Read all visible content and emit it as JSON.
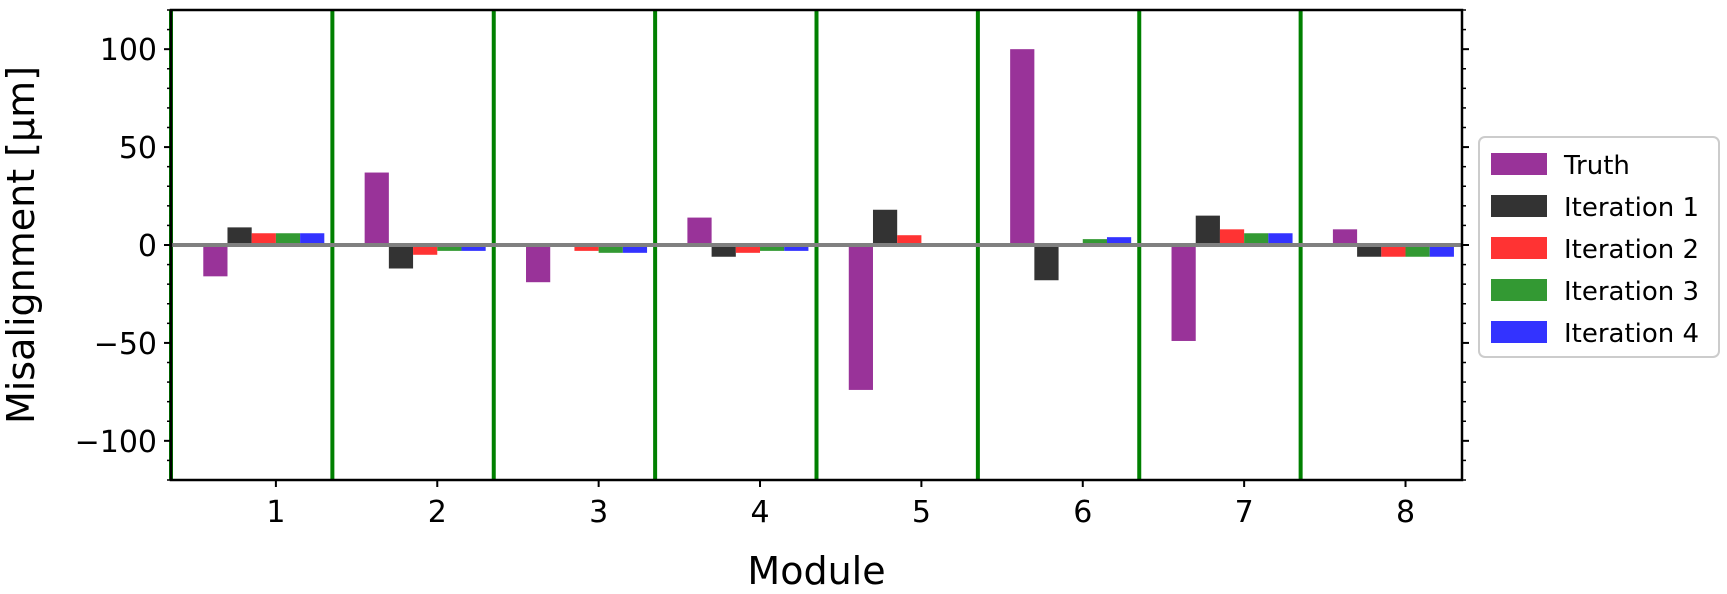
{
  "chart_data": {
    "type": "bar",
    "xlabel": "Module",
    "ylabel": "Misalignment  [μm]",
    "categories": [
      "1",
      "2",
      "3",
      "4",
      "5",
      "6",
      "7",
      "8"
    ],
    "ylim": [
      -120,
      120
    ],
    "yticks": [
      -100,
      -50,
      0,
      50,
      100
    ],
    "yticklabels": [
      "−100",
      "−50",
      "0",
      "50",
      "100"
    ],
    "grid": false,
    "legend_position": "right",
    "reference_line": {
      "y": 0,
      "color": "#808080"
    },
    "module_separators": {
      "x": [
        0.35,
        1.35,
        2.35,
        3.35,
        4.35,
        5.35,
        6.35,
        7.35
      ],
      "color": "#008000"
    },
    "series": [
      {
        "name": "Truth",
        "color": "#993399",
        "values": [
          -16,
          37,
          -19,
          14,
          -74,
          100,
          -49,
          8
        ]
      },
      {
        "name": "Iteration 1",
        "color": "#333333",
        "values": [
          9,
          -12,
          0,
          -6,
          18,
          -18,
          15,
          -6
        ]
      },
      {
        "name": "Iteration 2",
        "color": "#ff3333",
        "values": [
          6,
          -5,
          -3,
          -4,
          5,
          0,
          8,
          -6
        ]
      },
      {
        "name": "Iteration 3",
        "color": "#339933",
        "values": [
          6,
          -3,
          -4,
          -3,
          0,
          3,
          6,
          -6
        ]
      },
      {
        "name": "Iteration 4",
        "color": "#3333ff",
        "values": [
          6,
          -3,
          -4,
          -3,
          0,
          4,
          6,
          -6
        ]
      }
    ]
  }
}
